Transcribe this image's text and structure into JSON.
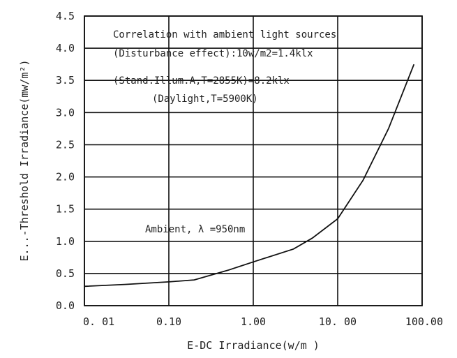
{
  "chart_data": {
    "type": "line",
    "title": "",
    "xlabel": "E-DC Irradiance(w/m )",
    "ylabel": "E...-Threshold Irradiance(mw/m²)",
    "x_scale": "log",
    "xlim": [
      0.01,
      100
    ],
    "ylim": [
      0,
      4.5
    ],
    "grid": true,
    "x_ticks": [
      0.01,
      0.1,
      1,
      10,
      100
    ],
    "x_tick_labels": [
      "0. 01",
      "0.10",
      "1.00",
      "10. 00",
      "100.00"
    ],
    "y_ticks": [
      0,
      0.5,
      1,
      1.5,
      2,
      2.5,
      3,
      3.5,
      4,
      4.5
    ],
    "y_tick_labels": [
      "0.0",
      "0.5",
      "1.0",
      "1.5",
      "2.0",
      "2.5",
      "3.0",
      "3.5",
      "4.0",
      "4.5"
    ],
    "series": [
      {
        "name": "",
        "x": [
          0.01,
          0.03,
          0.1,
          0.2,
          0.5,
          1,
          3,
          5,
          10,
          20,
          40,
          80
        ],
        "y": [
          0.3,
          0.33,
          0.37,
          0.4,
          0.55,
          0.68,
          0.88,
          1.05,
          1.35,
          1.95,
          2.75,
          3.75
        ]
      }
    ],
    "annotations": [
      "Correlation with ambient light sources",
      "(Disturbance effect):10w/m2=1.4klx",
      "(Stand.Illum.A,T=2855K)=8.2klx",
      "(Daylight,T=5900K)",
      "Ambient, λ =950nm"
    ]
  }
}
